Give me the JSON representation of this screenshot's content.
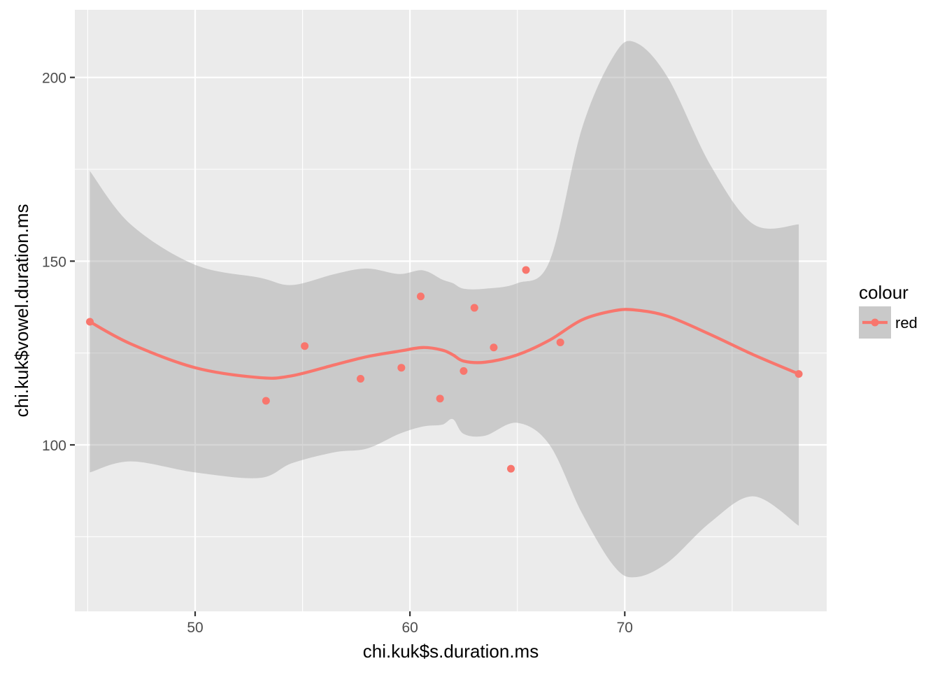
{
  "chart_data": {
    "type": "scatter",
    "xlabel": "chi.kuk$s.duration.ms",
    "ylabel": "chi.kuk$vowel.duration.ms",
    "xlim": [
      44.4,
      79.4
    ],
    "ylim": [
      54.7,
      218.4
    ],
    "x_ticks": [
      50,
      60,
      70
    ],
    "x_minor_ticks": [
      45,
      55,
      65,
      75
    ],
    "y_ticks": [
      100,
      150,
      200
    ],
    "y_minor_ticks": [
      75,
      125,
      175
    ],
    "x_tick_labels": [
      "50",
      "60",
      "70"
    ],
    "y_tick_labels": [
      "100",
      "150",
      "200"
    ],
    "grid": true,
    "legend": {
      "title": "colour",
      "position": "right",
      "entries": [
        "red"
      ]
    },
    "colors": {
      "series": "#F8766D",
      "panel_background": "#EBEBEB",
      "grid": "#FFFFFF",
      "ribbon": "#C4C4C4"
    },
    "series": [
      {
        "name": "red",
        "points": {
          "x": [
            45.1,
            53.3,
            55.1,
            57.7,
            59.6,
            60.5,
            61.4,
            62.5,
            63.0,
            63.9,
            64.7,
            65.4,
            67.0,
            78.1
          ],
          "y": [
            133.5,
            112.0,
            126.9,
            118.0,
            121.0,
            140.4,
            112.6,
            120.1,
            137.3,
            126.5,
            93.5,
            147.6,
            127.9,
            119.3
          ]
        },
        "smooth": {
          "x": [
            45.1,
            47.0,
            50.0,
            53.0,
            54.5,
            56.5,
            58.0,
            59.5,
            60.6,
            61.5,
            62.0,
            62.5,
            63.5,
            65.0,
            66.5,
            68.0,
            69.5,
            70.5,
            72.0,
            74.0,
            76.0,
            78.1
          ],
          "y": [
            133.5,
            127.5,
            121.0,
            118.3,
            118.8,
            121.8,
            124.0,
            125.5,
            126.5,
            125.8,
            124.5,
            122.8,
            122.5,
            124.5,
            128.5,
            134.0,
            136.5,
            136.7,
            135.0,
            130.0,
            124.5,
            119.3
          ]
        },
        "ribbon_upper": [
          174.5,
          160.0,
          149.0,
          145.5,
          143.5,
          146.5,
          148.0,
          146.5,
          147.5,
          145.0,
          144.0,
          142.5,
          142.5,
          144.0,
          150.0,
          186.0,
          206.0,
          209.5,
          200.0,
          176.0,
          160.0,
          160.0
        ],
        "ribbon_lower": [
          92.5,
          95.5,
          92.5,
          91.0,
          95.0,
          98.0,
          99.0,
          103.0,
          105.0,
          105.5,
          107.0,
          103.0,
          102.5,
          106.0,
          100.0,
          81.5,
          67.0,
          64.0,
          68.0,
          79.0,
          86.0,
          78.0
        ]
      }
    ]
  }
}
